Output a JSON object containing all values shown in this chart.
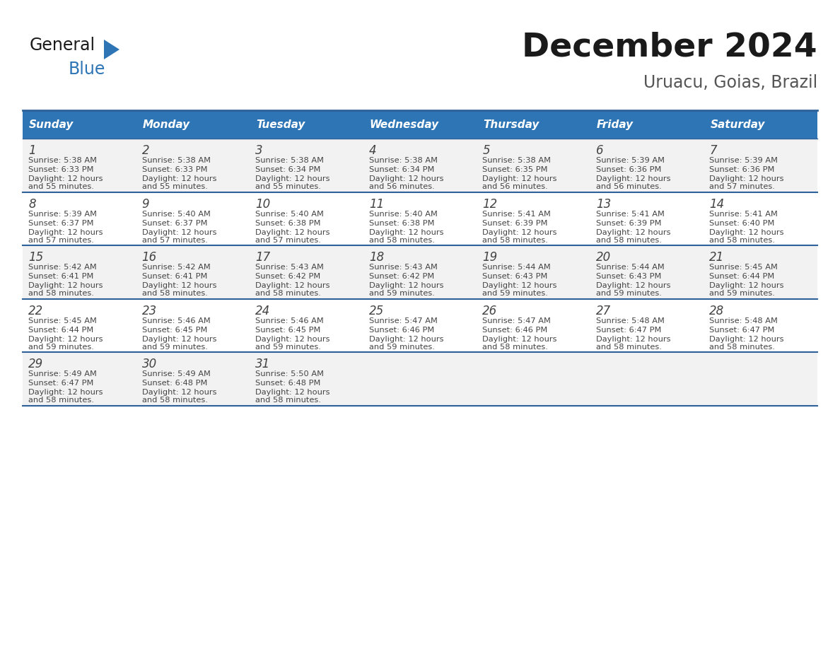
{
  "title": "December 2024",
  "subtitle": "Uruacu, Goias, Brazil",
  "days_of_week": [
    "Sunday",
    "Monday",
    "Tuesday",
    "Wednesday",
    "Thursday",
    "Friday",
    "Saturday"
  ],
  "header_bg_color": "#2E75B6",
  "header_text_color": "#FFFFFF",
  "cell_bg_color_odd": "#F2F2F2",
  "cell_bg_color_even": "#FFFFFF",
  "border_color": "#2E6099",
  "day_number_color": "#444444",
  "cell_text_color": "#444444",
  "title_color": "#1a1a1a",
  "subtitle_color": "#555555",
  "logo_black_color": "#1a1a1a",
  "logo_blue_color": "#2E75B6",
  "calendar_data": [
    [
      {
        "day": 1,
        "sunrise": "5:38 AM",
        "sunset": "6:33 PM",
        "daylight_hours": 12,
        "daylight_minutes": 55
      },
      {
        "day": 2,
        "sunrise": "5:38 AM",
        "sunset": "6:33 PM",
        "daylight_hours": 12,
        "daylight_minutes": 55
      },
      {
        "day": 3,
        "sunrise": "5:38 AM",
        "sunset": "6:34 PM",
        "daylight_hours": 12,
        "daylight_minutes": 55
      },
      {
        "day": 4,
        "sunrise": "5:38 AM",
        "sunset": "6:34 PM",
        "daylight_hours": 12,
        "daylight_minutes": 56
      },
      {
        "day": 5,
        "sunrise": "5:38 AM",
        "sunset": "6:35 PM",
        "daylight_hours": 12,
        "daylight_minutes": 56
      },
      {
        "day": 6,
        "sunrise": "5:39 AM",
        "sunset": "6:36 PM",
        "daylight_hours": 12,
        "daylight_minutes": 56
      },
      {
        "day": 7,
        "sunrise": "5:39 AM",
        "sunset": "6:36 PM",
        "daylight_hours": 12,
        "daylight_minutes": 57
      }
    ],
    [
      {
        "day": 8,
        "sunrise": "5:39 AM",
        "sunset": "6:37 PM",
        "daylight_hours": 12,
        "daylight_minutes": 57
      },
      {
        "day": 9,
        "sunrise": "5:40 AM",
        "sunset": "6:37 PM",
        "daylight_hours": 12,
        "daylight_minutes": 57
      },
      {
        "day": 10,
        "sunrise": "5:40 AM",
        "sunset": "6:38 PM",
        "daylight_hours": 12,
        "daylight_minutes": 57
      },
      {
        "day": 11,
        "sunrise": "5:40 AM",
        "sunset": "6:38 PM",
        "daylight_hours": 12,
        "daylight_minutes": 58
      },
      {
        "day": 12,
        "sunrise": "5:41 AM",
        "sunset": "6:39 PM",
        "daylight_hours": 12,
        "daylight_minutes": 58
      },
      {
        "day": 13,
        "sunrise": "5:41 AM",
        "sunset": "6:39 PM",
        "daylight_hours": 12,
        "daylight_minutes": 58
      },
      {
        "day": 14,
        "sunrise": "5:41 AM",
        "sunset": "6:40 PM",
        "daylight_hours": 12,
        "daylight_minutes": 58
      }
    ],
    [
      {
        "day": 15,
        "sunrise": "5:42 AM",
        "sunset": "6:41 PM",
        "daylight_hours": 12,
        "daylight_minutes": 58
      },
      {
        "day": 16,
        "sunrise": "5:42 AM",
        "sunset": "6:41 PM",
        "daylight_hours": 12,
        "daylight_minutes": 58
      },
      {
        "day": 17,
        "sunrise": "5:43 AM",
        "sunset": "6:42 PM",
        "daylight_hours": 12,
        "daylight_minutes": 58
      },
      {
        "day": 18,
        "sunrise": "5:43 AM",
        "sunset": "6:42 PM",
        "daylight_hours": 12,
        "daylight_minutes": 59
      },
      {
        "day": 19,
        "sunrise": "5:44 AM",
        "sunset": "6:43 PM",
        "daylight_hours": 12,
        "daylight_minutes": 59
      },
      {
        "day": 20,
        "sunrise": "5:44 AM",
        "sunset": "6:43 PM",
        "daylight_hours": 12,
        "daylight_minutes": 59
      },
      {
        "day": 21,
        "sunrise": "5:45 AM",
        "sunset": "6:44 PM",
        "daylight_hours": 12,
        "daylight_minutes": 59
      }
    ],
    [
      {
        "day": 22,
        "sunrise": "5:45 AM",
        "sunset": "6:44 PM",
        "daylight_hours": 12,
        "daylight_minutes": 59
      },
      {
        "day": 23,
        "sunrise": "5:46 AM",
        "sunset": "6:45 PM",
        "daylight_hours": 12,
        "daylight_minutes": 59
      },
      {
        "day": 24,
        "sunrise": "5:46 AM",
        "sunset": "6:45 PM",
        "daylight_hours": 12,
        "daylight_minutes": 59
      },
      {
        "day": 25,
        "sunrise": "5:47 AM",
        "sunset": "6:46 PM",
        "daylight_hours": 12,
        "daylight_minutes": 59
      },
      {
        "day": 26,
        "sunrise": "5:47 AM",
        "sunset": "6:46 PM",
        "daylight_hours": 12,
        "daylight_minutes": 58
      },
      {
        "day": 27,
        "sunrise": "5:48 AM",
        "sunset": "6:47 PM",
        "daylight_hours": 12,
        "daylight_minutes": 58
      },
      {
        "day": 28,
        "sunrise": "5:48 AM",
        "sunset": "6:47 PM",
        "daylight_hours": 12,
        "daylight_minutes": 58
      }
    ],
    [
      {
        "day": 29,
        "sunrise": "5:49 AM",
        "sunset": "6:47 PM",
        "daylight_hours": 12,
        "daylight_minutes": 58
      },
      {
        "day": 30,
        "sunrise": "5:49 AM",
        "sunset": "6:48 PM",
        "daylight_hours": 12,
        "daylight_minutes": 58
      },
      {
        "day": 31,
        "sunrise": "5:50 AM",
        "sunset": "6:48 PM",
        "daylight_hours": 12,
        "daylight_minutes": 58
      },
      null,
      null,
      null,
      null
    ]
  ]
}
